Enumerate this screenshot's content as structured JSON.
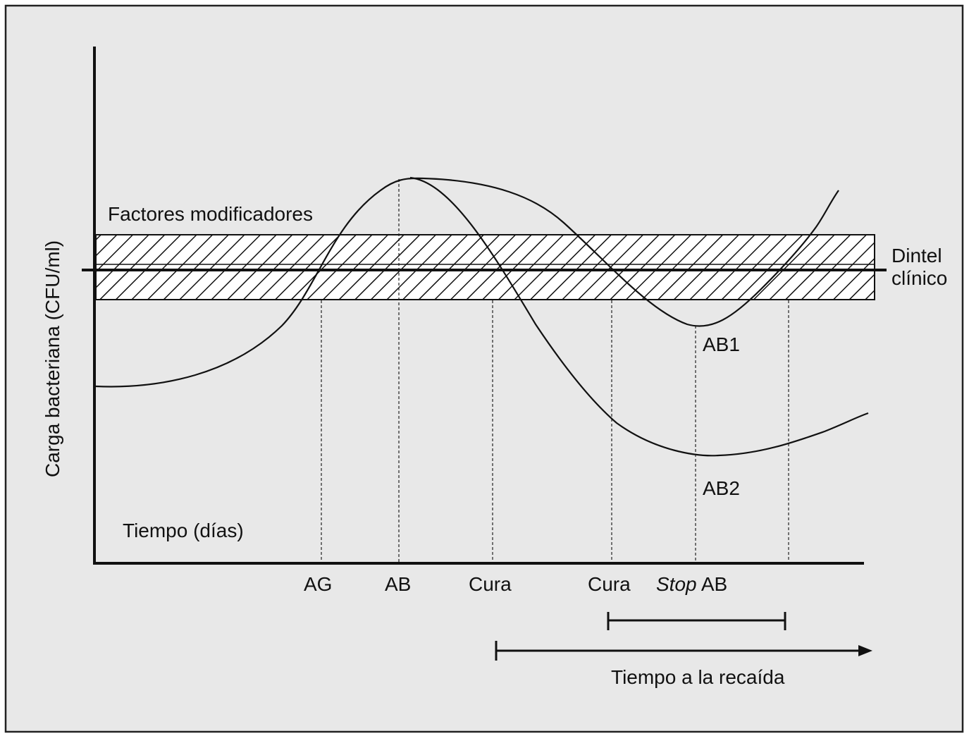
{
  "figure": {
    "y_axis_label": "Carga bacteriana (CFU/ml)",
    "x_axis_label": "Tiempo (días)",
    "band_label": "Factores modificadores",
    "threshold_label_line1": "Dintel",
    "threshold_label_line2": "clínico",
    "curve_ab1_label": "AB1",
    "curve_ab2_label": "AB2",
    "markers": {
      "ag": "AG",
      "ab": "AB",
      "cura_1": "Cura",
      "cura_2": "Cura",
      "stop_italic": "Stop",
      "stop_rest": " AB"
    },
    "relapse_label": "Tiempo a la recaída"
  },
  "colors": {
    "panel_background": "#e8e8e8",
    "ink": "#111111"
  }
}
